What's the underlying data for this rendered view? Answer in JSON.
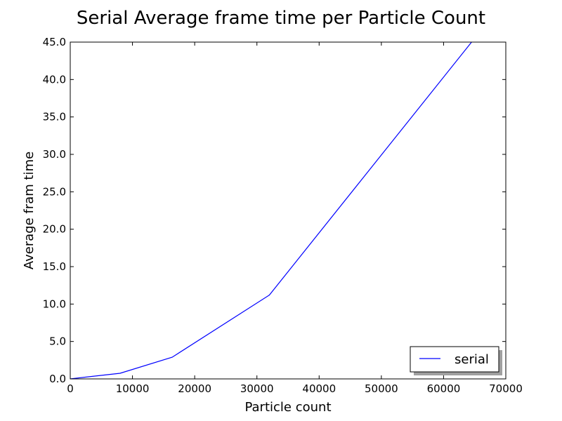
{
  "chart_data": {
    "type": "line",
    "title": "Serial Average frame time per Particle Count",
    "xlabel": "Particle count",
    "ylabel": "Average fram time",
    "xlim": [
      0,
      70000
    ],
    "ylim": [
      0,
      45
    ],
    "xticks": [
      0,
      10000,
      20000,
      30000,
      40000,
      50000,
      60000,
      70000
    ],
    "xtick_labels": [
      "0",
      "10000",
      "20000",
      "30000",
      "40000",
      "50000",
      "60000",
      "70000"
    ],
    "yticks": [
      0,
      5,
      10,
      15,
      20,
      25,
      30,
      35,
      40,
      45
    ],
    "ytick_labels": [
      "0.0",
      "5.0",
      "10.0",
      "15.0",
      "20.0",
      "25.0",
      "30.0",
      "35.0",
      "40.0",
      "45.0"
    ],
    "grid": false,
    "legend_position": "lower-right",
    "series": [
      {
        "name": "serial",
        "color": "#0000ff",
        "x": [
          0,
          1000,
          8000,
          16384,
          32000,
          64500
        ],
        "y": [
          0,
          0.1,
          0.75,
          2.9,
          11.2,
          45.0
        ]
      }
    ]
  }
}
